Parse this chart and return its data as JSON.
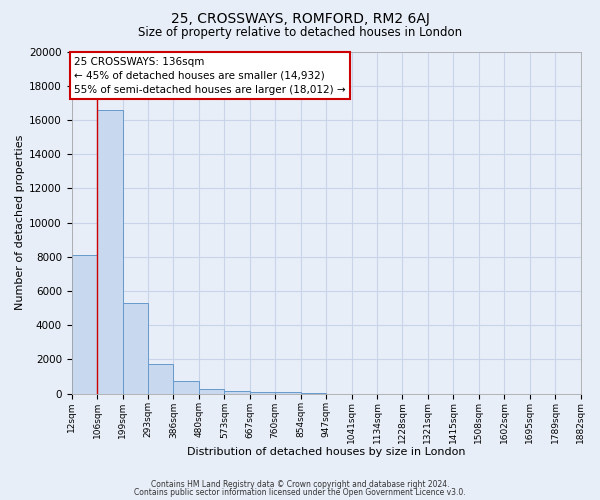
{
  "title": "25, CROSSWAYS, ROMFORD, RM2 6AJ",
  "subtitle": "Size of property relative to detached houses in London",
  "xlabel": "Distribution of detached houses by size in London",
  "ylabel": "Number of detached properties",
  "bin_labels": [
    "12sqm",
    "106sqm",
    "199sqm",
    "293sqm",
    "386sqm",
    "480sqm",
    "573sqm",
    "667sqm",
    "760sqm",
    "854sqm",
    "947sqm",
    "1041sqm",
    "1134sqm",
    "1228sqm",
    "1321sqm",
    "1415sqm",
    "1508sqm",
    "1602sqm",
    "1695sqm",
    "1789sqm",
    "1882sqm"
  ],
  "bar_values": [
    8100,
    16600,
    5300,
    1750,
    750,
    250,
    150,
    100,
    75,
    50,
    0,
    0,
    0,
    0,
    0,
    0,
    0,
    0,
    0,
    0
  ],
  "ylim": [
    0,
    20000
  ],
  "yticks": [
    0,
    2000,
    4000,
    6000,
    8000,
    10000,
    12000,
    14000,
    16000,
    18000,
    20000
  ],
  "bar_color": "#c8d8ee",
  "bar_edge_color": "#6699cc",
  "bg_color": "#e8eef8",
  "grid_color": "#c8d4e8",
  "red_line_x": 1,
  "annotation_title": "25 CROSSWAYS: 136sqm",
  "annotation_line1": "← 45% of detached houses are smaller (14,932)",
  "annotation_line2": "55% of semi-detached houses are larger (18,012) →",
  "annotation_box_color": "#ffffff",
  "annotation_box_edge": "#cc0000",
  "footer_line1": "Contains HM Land Registry data © Crown copyright and database right 2024.",
  "footer_line2": "Contains public sector information licensed under the Open Government Licence v3.0."
}
